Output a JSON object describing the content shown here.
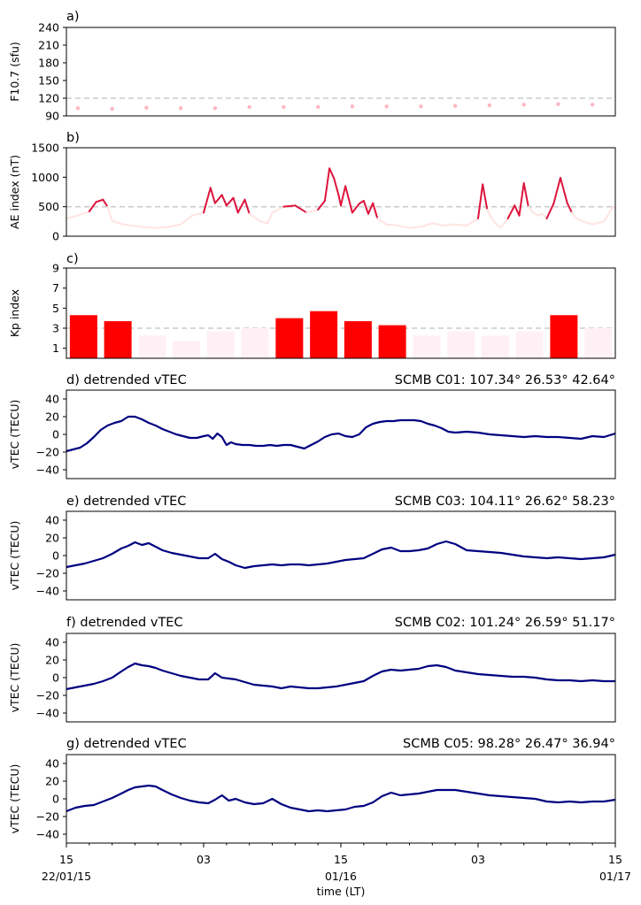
{
  "chart_data": [
    {
      "type": "scatter",
      "panel_label": "a)",
      "ylabel": "F10.7 (sfu)",
      "ylim": [
        90,
        240
      ],
      "yticks": [
        "90",
        "120",
        "150",
        "180",
        "210",
        "240"
      ],
      "threshold": 120,
      "color": "#ffb6c1",
      "x_hours": [
        0.5,
        2,
        3.5,
        5,
        6.5,
        8,
        9.5,
        11,
        12.5,
        14,
        15.5,
        17,
        18.5,
        20,
        21.5,
        23
      ],
      "values": [
        103,
        102,
        104,
        103,
        103,
        105,
        105,
        105,
        106,
        106,
        106,
        107,
        108,
        109,
        110,
        109
      ]
    },
    {
      "type": "line",
      "panel_label": "b)",
      "ylabel": "AE index (nT)",
      "ylim": [
        0,
        1500
      ],
      "yticks": [
        "0",
        "500",
        "1000",
        "1500"
      ],
      "threshold": 500,
      "low_color": "#ffe4e1",
      "high_color": "#dc143c",
      "x_hours": [
        0,
        0.5,
        1,
        1.3,
        1.6,
        1.8,
        2,
        2.5,
        3,
        3.5,
        4,
        4.5,
        5,
        5.5,
        6,
        6.3,
        6.5,
        6.8,
        7,
        7.3,
        7.5,
        7.8,
        8,
        8.3,
        8.5,
        8.8,
        9,
        9.5,
        10,
        10.5,
        11,
        11.3,
        11.5,
        11.7,
        11.9,
        12,
        12.2,
        12.5,
        12.8,
        13,
        13.2,
        13.4,
        13.6,
        14,
        14.5,
        15,
        15.5,
        16,
        16.5,
        17,
        17.5,
        18,
        18.2,
        18.4,
        18.6,
        18.8,
        19,
        19.3,
        19.6,
        19.8,
        20,
        20.2,
        20.4,
        20.6,
        20.8,
        21,
        21.3,
        21.6,
        21.9,
        22.1,
        22.3,
        22.6,
        23,
        23.5,
        23.9,
        24
      ],
      "values": [
        300,
        350,
        420,
        580,
        620,
        500,
        260,
        200,
        170,
        150,
        140,
        160,
        200,
        350,
        400,
        820,
        560,
        700,
        520,
        650,
        400,
        620,
        380,
        300,
        250,
        220,
        400,
        500,
        520,
        400,
        450,
        600,
        1150,
        980,
        700,
        520,
        850,
        400,
        550,
        600,
        380,
        560,
        300,
        200,
        180,
        140,
        160,
        220,
        180,
        200,
        180,
        300,
        880,
        450,
        300,
        200,
        150,
        300,
        520,
        350,
        900,
        500,
        400,
        350,
        380,
        300,
        550,
        990,
        560,
        400,
        300,
        250,
        200,
        250,
        500,
        480
      ]
    },
    {
      "type": "bar",
      "panel_label": "c)",
      "ylabel": "Kp index",
      "ylim": [
        0,
        9
      ],
      "yticks": [
        "1",
        "3",
        "5",
        "7",
        "9"
      ],
      "threshold": 3,
      "low_color": "#fff0f5",
      "high_color": "#ff0000",
      "x_hours": [
        0.75,
        2.25,
        3.75,
        5.25,
        6.75,
        8.25,
        9.75,
        11.25,
        12.75,
        14.25,
        15.75,
        17.25,
        18.75,
        20.25,
        21.75,
        23.25
      ],
      "values": [
        4.3,
        3.7,
        2.3,
        1.7,
        2.7,
        3.0,
        4.0,
        4.7,
        3.7,
        3.3,
        2.3,
        2.7,
        2.3,
        2.7,
        4.3,
        3.0
      ]
    },
    {
      "type": "line",
      "panel_label": "d) detrended vTEC",
      "station": "SCMB C01: 107.34° 26.53° 42.64°",
      "ylabel": "vTEC (TECU)",
      "ylim": [
        -50,
        50
      ],
      "yticks": [
        "−40",
        "−20",
        "0",
        "20",
        "40"
      ],
      "color": "#000080",
      "x_hours": [
        0,
        0.3,
        0.6,
        0.9,
        1.2,
        1.5,
        1.8,
        2.1,
        2.4,
        2.7,
        3.0,
        3.3,
        3.6,
        3.9,
        4.2,
        4.5,
        4.8,
        5.1,
        5.4,
        5.7,
        6.0,
        6.2,
        6.4,
        6.6,
        6.8,
        7.0,
        7.2,
        7.4,
        7.7,
        8.0,
        8.3,
        8.6,
        8.9,
        9.2,
        9.5,
        9.8,
        10.1,
        10.4,
        10.7,
        11.0,
        11.3,
        11.6,
        11.9,
        12.2,
        12.5,
        12.8,
        13.1,
        13.4,
        13.7,
        14.0,
        14.3,
        14.6,
        14.9,
        15.2,
        15.5,
        15.8,
        16.1,
        16.4,
        16.7,
        17.0,
        17.5,
        18.0,
        18.5,
        19.0,
        19.5,
        20.0,
        20.5,
        21.0,
        21.5,
        22.0,
        22.5,
        23.0,
        23.5,
        24.0
      ],
      "values": [
        -19,
        -17,
        -15,
        -10,
        -3,
        5,
        10,
        13,
        15,
        20,
        20,
        17,
        13,
        10,
        6,
        3,
        0,
        -2,
        -4,
        -4,
        -2,
        -1,
        -5,
        1,
        -3,
        -12,
        -9,
        -11,
        -12,
        -12,
        -13,
        -13,
        -12,
        -13,
        -12,
        -12,
        -14,
        -16,
        -12,
        -8,
        -3,
        0,
        1,
        -2,
        -3,
        0,
        8,
        12,
        14,
        15,
        15,
        16,
        16,
        16,
        15,
        12,
        10,
        7,
        3,
        2,
        3,
        2,
        0,
        -1,
        -2,
        -3,
        -2,
        -3,
        -3,
        -4,
        -5,
        -2,
        -3,
        1
      ]
    },
    {
      "type": "line",
      "panel_label": "e) detrended vTEC",
      "station": "SCMB C03: 104.11° 26.62° 58.23°",
      "ylabel": "vTEC (TECU)",
      "ylim": [
        -50,
        50
      ],
      "yticks": [
        "−40",
        "−20",
        "0",
        "20",
        "40"
      ],
      "color": "#000080",
      "x_hours": [
        0,
        0.4,
        0.8,
        1.2,
        1.6,
        2.0,
        2.4,
        2.7,
        3.0,
        3.3,
        3.6,
        3.9,
        4.2,
        4.6,
        5.0,
        5.4,
        5.8,
        6.2,
        6.5,
        6.8,
        7.1,
        7.4,
        7.8,
        8.2,
        8.6,
        9.0,
        9.4,
        9.8,
        10.2,
        10.6,
        11.0,
        11.4,
        11.8,
        12.2,
        12.6,
        13.0,
        13.4,
        13.8,
        14.2,
        14.6,
        15.0,
        15.4,
        15.8,
        16.2,
        16.6,
        17.0,
        17.5,
        18.0,
        18.5,
        19.0,
        19.5,
        20.0,
        20.5,
        21.0,
        21.5,
        22.0,
        22.5,
        23.0,
        23.5,
        24.0
      ],
      "values": [
        -13,
        -11,
        -9,
        -6,
        -3,
        2,
        8,
        11,
        15,
        12,
        14,
        10,
        6,
        3,
        1,
        -1,
        -3,
        -3,
        2,
        -4,
        -7,
        -11,
        -14,
        -12,
        -11,
        -10,
        -11,
        -10,
        -10,
        -11,
        -10,
        -9,
        -7,
        -5,
        -4,
        -3,
        2,
        7,
        9,
        5,
        5,
        6,
        8,
        13,
        16,
        13,
        6,
        5,
        4,
        3,
        1,
        -1,
        -2,
        -3,
        -2,
        -3,
        -4,
        -3,
        -2,
        1
      ]
    },
    {
      "type": "line",
      "panel_label": "f) detrended vTEC",
      "station": "SCMB C02: 101.24° 26.59° 51.17°",
      "ylabel": "vTEC (TECU)",
      "ylim": [
        -50,
        50
      ],
      "yticks": [
        "−40",
        "−20",
        "0",
        "20",
        "40"
      ],
      "color": "#000080",
      "x_hours": [
        0,
        0.4,
        0.8,
        1.2,
        1.6,
        2.0,
        2.4,
        2.7,
        3.0,
        3.3,
        3.6,
        3.9,
        4.2,
        4.6,
        5.0,
        5.4,
        5.8,
        6.2,
        6.5,
        6.8,
        7.1,
        7.4,
        7.8,
        8.2,
        8.6,
        9.0,
        9.4,
        9.8,
        10.2,
        10.6,
        11.0,
        11.4,
        11.8,
        12.2,
        12.6,
        13.0,
        13.4,
        13.8,
        14.2,
        14.6,
        15.0,
        15.4,
        15.8,
        16.2,
        16.6,
        17.0,
        17.5,
        18.0,
        18.5,
        19.0,
        19.5,
        20.0,
        20.5,
        21.0,
        21.5,
        22.0,
        22.5,
        23.0,
        23.5,
        24.0
      ],
      "values": [
        -13,
        -11,
        -9,
        -7,
        -4,
        0,
        7,
        12,
        16,
        14,
        13,
        11,
        8,
        5,
        2,
        0,
        -2,
        -2,
        5,
        0,
        -1,
        -2,
        -5,
        -8,
        -9,
        -10,
        -12,
        -10,
        -11,
        -12,
        -12,
        -11,
        -10,
        -8,
        -6,
        -4,
        2,
        7,
        9,
        8,
        9,
        10,
        13,
        14,
        12,
        8,
        6,
        4,
        3,
        2,
        1,
        1,
        0,
        -2,
        -3,
        -3,
        -4,
        -3,
        -4,
        -4
      ]
    },
    {
      "type": "line",
      "panel_label": "g) detrended vTEC",
      "station": "SCMB C05:  98.28° 26.47° 36.94°",
      "ylabel": "vTEC (TECU)",
      "ylim": [
        -50,
        50
      ],
      "yticks": [
        "−40",
        "−20",
        "0",
        "20",
        "40"
      ],
      "color": "#000080",
      "x_hours": [
        0,
        0.4,
        0.8,
        1.2,
        1.6,
        2.0,
        2.4,
        2.7,
        3.0,
        3.3,
        3.6,
        3.9,
        4.2,
        4.6,
        5.0,
        5.4,
        5.8,
        6.2,
        6.5,
        6.8,
        7.1,
        7.4,
        7.8,
        8.2,
        8.6,
        9.0,
        9.4,
        9.8,
        10.2,
        10.6,
        11.0,
        11.4,
        11.8,
        12.2,
        12.6,
        13.0,
        13.4,
        13.8,
        14.2,
        14.6,
        15.0,
        15.4,
        15.8,
        16.2,
        16.6,
        17.0,
        17.5,
        18.0,
        18.5,
        19.0,
        19.5,
        20.0,
        20.5,
        21.0,
        21.5,
        22.0,
        22.5,
        23.0,
        23.5,
        24.0
      ],
      "values": [
        -14,
        -10,
        -8,
        -7,
        -3,
        1,
        6,
        10,
        13,
        14,
        15,
        14,
        10,
        5,
        1,
        -2,
        -4,
        -5,
        -1,
        4,
        -2,
        0,
        -4,
        -6,
        -5,
        0,
        -6,
        -10,
        -12,
        -14,
        -13,
        -14,
        -13,
        -12,
        -9,
        -8,
        -4,
        3,
        7,
        4,
        5,
        6,
        8,
        10,
        10,
        10,
        8,
        6,
        4,
        3,
        2,
        1,
        0,
        -3,
        -4,
        -3,
        -4,
        -3,
        -3,
        -1
      ]
    }
  ],
  "xaxis": {
    "label": "time (LT)",
    "ticks": [
      {
        "hour": 0,
        "line1": "15",
        "line2": "22/01/15"
      },
      {
        "hour": 6,
        "line1": "03",
        "line2": ""
      },
      {
        "hour": 12,
        "line1": "15",
        "line2": "01/16"
      },
      {
        "hour": 18,
        "line1": "03",
        "line2": ""
      },
      {
        "hour": 24,
        "line1": "15",
        "line2": "01/17"
      }
    ]
  }
}
